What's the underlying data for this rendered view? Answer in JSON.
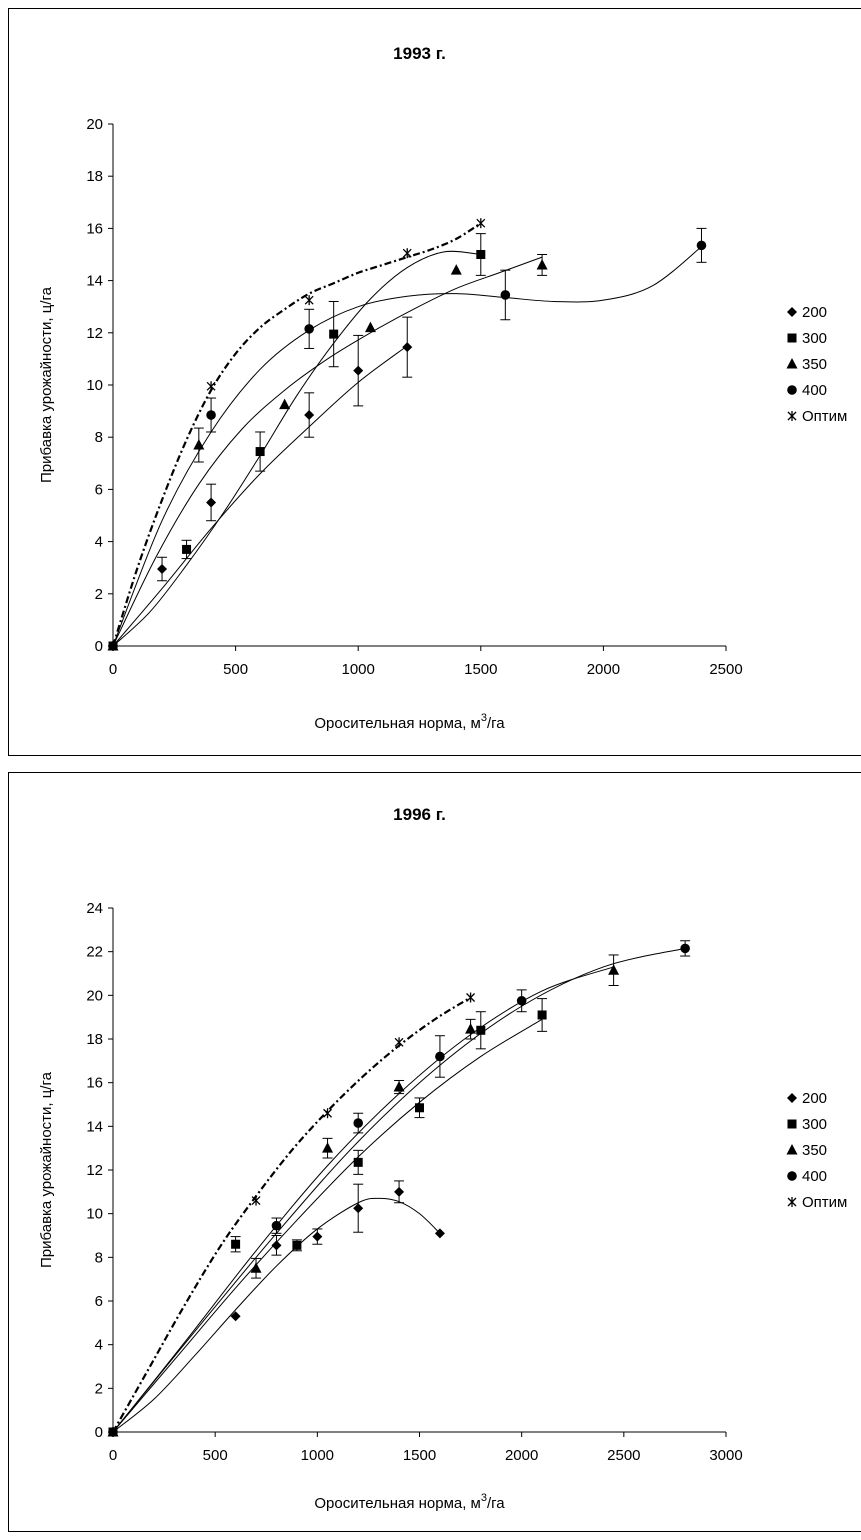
{
  "chart_data": [
    {
      "type": "scatter",
      "title": "1993 г.",
      "xlabel_main": "Оросительная норма, м",
      "xlabel_sup": "3",
      "xlabel_tail": "/га",
      "ylabel": "Прибавка урожайности, ц/га",
      "xlim": [
        0,
        2500
      ],
      "ylim": [
        0,
        20
      ],
      "xticks": [
        0,
        500,
        1000,
        1500,
        2000,
        2500
      ],
      "yticks": [
        0,
        2,
        4,
        6,
        8,
        10,
        12,
        14,
        16,
        18,
        20
      ],
      "grid": false,
      "legend_position": "right",
      "series": [
        {
          "name": "200",
          "marker": "diamond",
          "points": [
            [
              0,
              0
            ],
            [
              200,
              2.95
            ],
            [
              400,
              5.5
            ],
            [
              800,
              8.85
            ],
            [
              1000,
              10.55
            ],
            [
              1200,
              11.45
            ]
          ],
          "errors": [
            0,
            0.45,
            0.7,
            0.85,
            1.35,
            1.15
          ],
          "trend": [
            [
              0,
              0
            ],
            [
              200,
              2.2
            ],
            [
              400,
              4.5
            ],
            [
              600,
              6.6
            ],
            [
              800,
              8.4
            ],
            [
              1000,
              10.1
            ],
            [
              1200,
              11.5
            ]
          ]
        },
        {
          "name": "300",
          "marker": "square",
          "points": [
            [
              0,
              0
            ],
            [
              300,
              3.7
            ],
            [
              600,
              7.45
            ],
            [
              900,
              11.95
            ],
            [
              1500,
              15.0
            ]
          ],
          "errors": [
            0,
            0.35,
            0.75,
            1.25,
            0.8
          ],
          "trend": [
            [
              0,
              0
            ],
            [
              150,
              1.3
            ],
            [
              300,
              3.1
            ],
            [
              450,
              5.1
            ],
            [
              600,
              7.3
            ],
            [
              750,
              9.6
            ],
            [
              900,
              11.6
            ],
            [
              1050,
              13.3
            ],
            [
              1200,
              14.5
            ],
            [
              1350,
              15.1
            ],
            [
              1500,
              15.0
            ]
          ]
        },
        {
          "name": "350",
          "marker": "triangle",
          "points": [
            [
              0,
              0
            ],
            [
              350,
              7.7
            ],
            [
              700,
              9.25
            ],
            [
              1050,
              12.2
            ],
            [
              1400,
              14.4
            ],
            [
              1750,
              14.6
            ]
          ],
          "errors": [
            0,
            0.65,
            0,
            0,
            0,
            0.4
          ],
          "trend": [
            [
              0,
              0
            ],
            [
              175,
              3.4
            ],
            [
              350,
              6.2
            ],
            [
              525,
              8.3
            ],
            [
              700,
              9.8
            ],
            [
              875,
              11.0
            ],
            [
              1050,
              12.0
            ],
            [
              1225,
              12.9
            ],
            [
              1400,
              13.7
            ],
            [
              1575,
              14.3
            ],
            [
              1750,
              14.9
            ]
          ]
        },
        {
          "name": "400",
          "marker": "circle",
          "points": [
            [
              0,
              0
            ],
            [
              400,
              8.85
            ],
            [
              800,
              12.15
            ],
            [
              1600,
              13.45
            ],
            [
              2400,
              15.35
            ]
          ],
          "errors": [
            0,
            0.65,
            0.75,
            0.95,
            0.65
          ],
          "trend": [
            [
              0,
              0
            ],
            [
              200,
              4.8
            ],
            [
              400,
              8.2
            ],
            [
              600,
              10.6
            ],
            [
              800,
              12.1
            ],
            [
              1000,
              13.0
            ],
            [
              1200,
              13.4
            ],
            [
              1400,
              13.5
            ],
            [
              1600,
              13.35
            ],
            [
              1800,
              13.2
            ],
            [
              2000,
              13.25
            ],
            [
              2200,
              13.8
            ],
            [
              2400,
              15.3
            ]
          ]
        },
        {
          "name": "Оптим",
          "marker": "star",
          "dashed": true,
          "points": [
            [
              0,
              0
            ],
            [
              400,
              9.95
            ],
            [
              800,
              13.25
            ],
            [
              1200,
              15.05
            ],
            [
              1500,
              16.2
            ]
          ],
          "errors": [
            0,
            0,
            0,
            0,
            0
          ],
          "trend": [
            [
              0,
              0
            ],
            [
              100,
              3.0
            ],
            [
              200,
              5.6
            ],
            [
              300,
              7.9
            ],
            [
              400,
              9.8
            ],
            [
              500,
              11.2
            ],
            [
              600,
              12.2
            ],
            [
              700,
              12.9
            ],
            [
              800,
              13.5
            ],
            [
              900,
              13.9
            ],
            [
              1000,
              14.3
            ],
            [
              1100,
              14.6
            ],
            [
              1200,
              14.9
            ],
            [
              1300,
              15.2
            ],
            [
              1400,
              15.6
            ],
            [
              1500,
              16.2
            ]
          ]
        }
      ]
    },
    {
      "type": "scatter",
      "title": "1996 г.",
      "xlabel_main": "Оросительная норма, м",
      "xlabel_sup": "3",
      "xlabel_tail": "/га",
      "ylabel": "Прибавка урожайности, ц/га",
      "xlim": [
        0,
        3000
      ],
      "ylim": [
        0,
        24
      ],
      "xticks": [
        0,
        500,
        1000,
        1500,
        2000,
        2500,
        3000
      ],
      "yticks": [
        0,
        2,
        4,
        6,
        8,
        10,
        12,
        14,
        16,
        18,
        20,
        22,
        24
      ],
      "grid": false,
      "legend_position": "right",
      "series": [
        {
          "name": "200",
          "marker": "diamond",
          "points": [
            [
              0,
              0
            ],
            [
              600,
              5.3
            ],
            [
              800,
              8.55
            ],
            [
              1000,
              8.95
            ],
            [
              1200,
              10.25
            ],
            [
              1400,
              11.0
            ],
            [
              1600,
              9.1
            ]
          ],
          "errors": [
            0,
            0,
            0.45,
            0.35,
            1.1,
            0.5,
            0
          ],
          "trend": [
            [
              0,
              0
            ],
            [
              200,
              1.5
            ],
            [
              400,
              3.5
            ],
            [
              600,
              5.6
            ],
            [
              800,
              7.6
            ],
            [
              1000,
              9.3
            ],
            [
              1200,
              10.5
            ],
            [
              1300,
              10.7
            ],
            [
              1400,
              10.55
            ],
            [
              1500,
              10.0
            ],
            [
              1600,
              9.1
            ]
          ]
        },
        {
          "name": "300",
          "marker": "square",
          "points": [
            [
              0,
              0
            ],
            [
              600,
              8.6
            ],
            [
              900,
              8.55
            ],
            [
              1200,
              12.35
            ],
            [
              1500,
              14.85
            ],
            [
              1800,
              18.4
            ],
            [
              2100,
              19.1
            ]
          ],
          "errors": [
            0,
            0.35,
            0.25,
            0.55,
            0.45,
            0.85,
            0.75
          ],
          "trend": [
            [
              0,
              0
            ],
            [
              300,
              3.3
            ],
            [
              600,
              6.6
            ],
            [
              900,
              9.7
            ],
            [
              1200,
              12.6
            ],
            [
              1500,
              15.1
            ],
            [
              1800,
              17.2
            ],
            [
              2100,
              18.9
            ]
          ]
        },
        {
          "name": "350",
          "marker": "triangle",
          "points": [
            [
              0,
              0
            ],
            [
              700,
              7.5
            ],
            [
              1050,
              13.0
            ],
            [
              1400,
              15.8
            ],
            [
              1750,
              18.45
            ],
            [
              2450,
              21.15
            ]
          ],
          "errors": [
            0,
            0.45,
            0.45,
            0.3,
            0.45,
            0.7
          ],
          "trend": [
            [
              0,
              0
            ],
            [
              350,
              4.1
            ],
            [
              700,
              8.3
            ],
            [
              1050,
              12.2
            ],
            [
              1400,
              15.5
            ],
            [
              1750,
              18.2
            ],
            [
              2100,
              20.2
            ],
            [
              2450,
              21.3
            ]
          ]
        },
        {
          "name": "400",
          "marker": "circle",
          "points": [
            [
              0,
              0
            ],
            [
              800,
              9.45
            ],
            [
              1200,
              14.15
            ],
            [
              1600,
              17.2
            ],
            [
              2000,
              19.75
            ],
            [
              2800,
              22.15
            ]
          ],
          "errors": [
            0,
            0.35,
            0.45,
            0.95,
            0.5,
            0.35
          ],
          "trend": [
            [
              0,
              0
            ],
            [
              400,
              4.6
            ],
            [
              800,
              9.1
            ],
            [
              1200,
              13.3
            ],
            [
              1600,
              16.8
            ],
            [
              2000,
              19.5
            ],
            [
              2400,
              21.3
            ],
            [
              2800,
              22.15
            ]
          ]
        },
        {
          "name": "Оптим",
          "marker": "star",
          "dashed": true,
          "points": [
            [
              0,
              0
            ],
            [
              700,
              10.6
            ],
            [
              1050,
              14.6
            ],
            [
              1400,
              17.85
            ],
            [
              1750,
              19.9
            ]
          ],
          "errors": [
            0,
            0,
            0,
            0,
            0
          ],
          "trend": [
            [
              0,
              0
            ],
            [
              175,
              2.9
            ],
            [
              350,
              5.8
            ],
            [
              525,
              8.5
            ],
            [
              700,
              10.8
            ],
            [
              875,
              12.9
            ],
            [
              1050,
              14.7
            ],
            [
              1225,
              16.3
            ],
            [
              1400,
              17.7
            ],
            [
              1575,
              18.9
            ],
            [
              1750,
              19.9
            ]
          ]
        }
      ]
    }
  ]
}
